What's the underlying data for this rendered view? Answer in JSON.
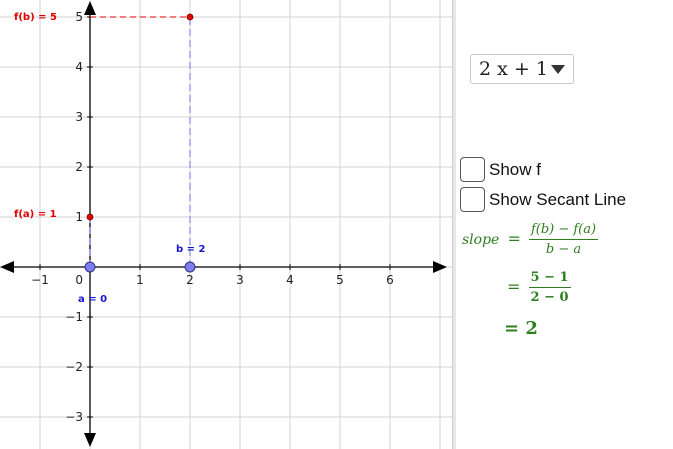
{
  "graph": {
    "x_ticks": [
      "−1",
      "1",
      "2",
      "3",
      "4",
      "5",
      "6"
    ],
    "y_ticks": [
      "−3",
      "−2",
      "−1",
      "1",
      "2",
      "3",
      "4",
      "5"
    ],
    "origin_label": "0",
    "point_a_label": "a = 0",
    "point_b_label": "b = 2",
    "fa_label": "f(a) = 1",
    "fb_label": "f(b) = 5",
    "colors": {
      "grid": "#d3d3d3",
      "axis": "#000000",
      "point": "#7b7ef0",
      "red": "#e00000",
      "blue": "#1515d0",
      "dashed_blue": "#9090f0"
    }
  },
  "sidebar": {
    "function_select": {
      "selected": "2 x + 1"
    },
    "show_f": {
      "label": "Show f"
    },
    "show_secant": {
      "label": "Show Secant Line"
    },
    "formula": {
      "slope_label": "slope",
      "equals": "=",
      "num1": "f(b) − f(a)",
      "den1": "b − a",
      "num2": "5 − 1",
      "den2": "2 − 0",
      "result": "= 2"
    }
  }
}
